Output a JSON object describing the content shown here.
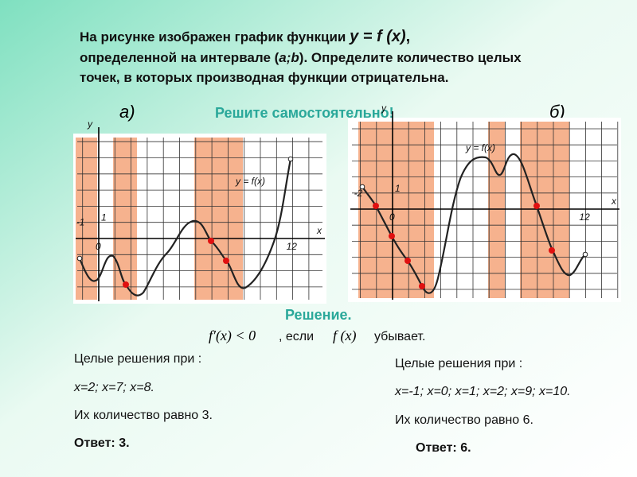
{
  "problem": {
    "line1": "На рисунке изображен график функции",
    "formula": "y = f (x)",
    "comma": ",",
    "line2a": "определенной на интервале (",
    "interval": "a;b",
    "line2b": "). Определите количество целых",
    "line3": "точек, в которых производная функции отрицательна."
  },
  "labels": {
    "a": "а)",
    "task": "Решите самостоятельно!",
    "b": "б)"
  },
  "graph_a": {
    "y_axis": "y",
    "x_axis": "x",
    "one": "1",
    "minus": "-1",
    "zero": "0",
    "twelve": "12",
    "func": "y = f(x)"
  },
  "graph_b": {
    "y_axis": "y",
    "x_axis": "x",
    "one": "1",
    "minus": "-2",
    "zero": "0",
    "twelve": "12",
    "func": "y = f(x)"
  },
  "solution": {
    "title": "Решение.",
    "derivative": "f′(x) < 0",
    "if": ", если",
    "func": "f (x)",
    "decreases": "убывает."
  },
  "answer_a": {
    "intro": "Целые решения при :",
    "points": "x=2; x=7; x=8.",
    "count": "Их количество равно 3.",
    "answer_label": "Ответ:",
    "answer": "3."
  },
  "answer_b": {
    "intro": "Целые решения при :",
    "points": "x=-1; x=0; x=1; x=2; x=9; x=10.",
    "count": "Их количество равно 6.",
    "answer_label": "Ответ:",
    "answer": "6."
  }
}
